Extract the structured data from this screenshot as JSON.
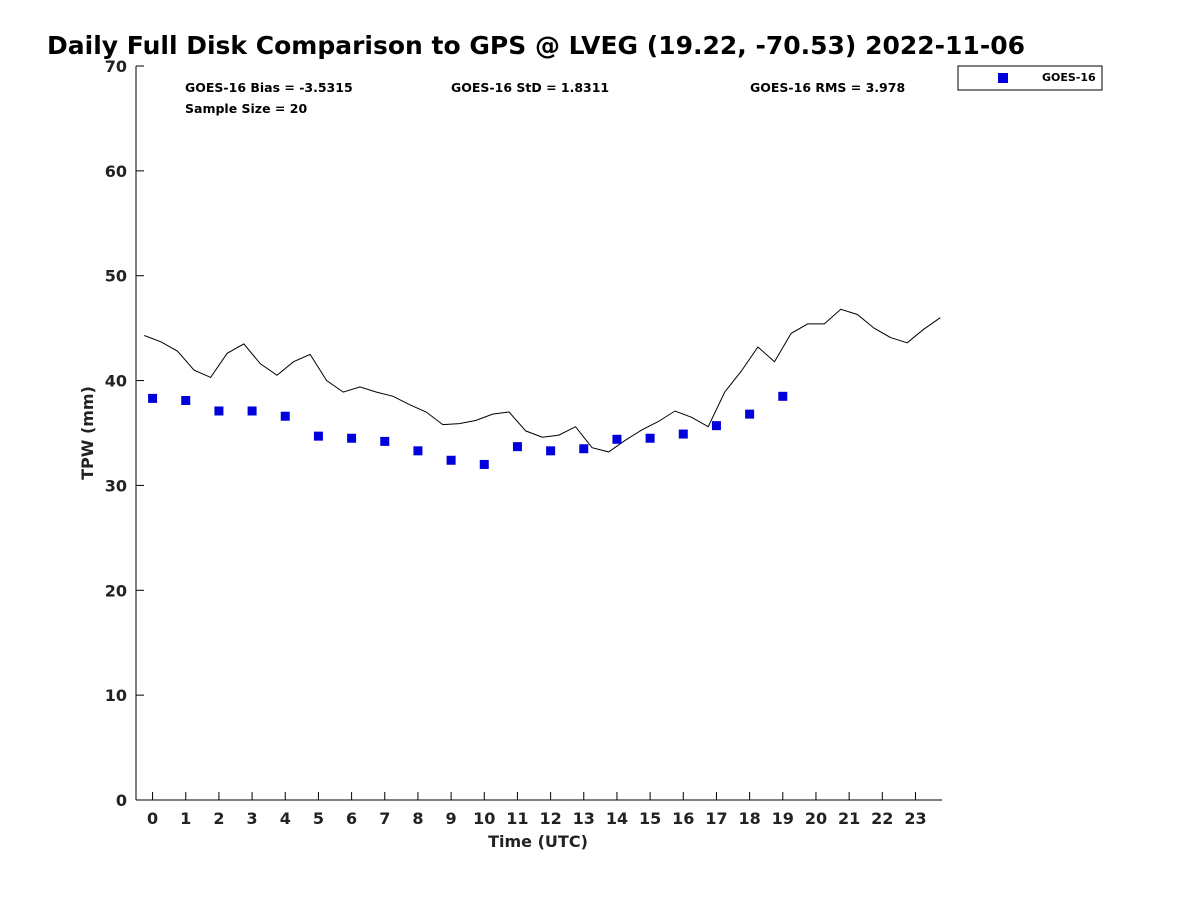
{
  "chart_data": {
    "type": "scatter",
    "title": "Daily Full Disk Comparison to GPS @ LVEG (19.22, -70.53) 2022-11-06",
    "xlabel": "Time (UTC)",
    "ylabel": "TPW (mm)",
    "xlim": [
      -0.5,
      23.8
    ],
    "ylim": [
      0,
      70
    ],
    "xticks": [
      0,
      1,
      2,
      3,
      4,
      5,
      6,
      7,
      8,
      9,
      10,
      11,
      12,
      13,
      14,
      15,
      16,
      17,
      18,
      19,
      20,
      21,
      22,
      23
    ],
    "xtick_labels": [
      "0",
      "1",
      "2",
      "3",
      "4",
      "5",
      "6",
      "7",
      "8",
      "9",
      "10",
      "11",
      "12",
      "13",
      "14",
      "15",
      "16",
      "17",
      "18",
      "19",
      "20",
      "21",
      "22",
      "23"
    ],
    "yticks": [
      0,
      10,
      20,
      30,
      40,
      50,
      60,
      70
    ],
    "ytick_labels": [
      "0",
      "10",
      "20",
      "30",
      "40",
      "50",
      "60",
      "70"
    ],
    "grid": false,
    "legend_position": "outside-top-right",
    "stats": [
      "GOES-16 Bias = -3.5315",
      "GOES-16 StD = 1.8311",
      "GOES-16 RMS = 3.978",
      "Sample Size = 20"
    ],
    "series": [
      {
        "name": "GOES-16",
        "kind": "scatter",
        "marker": "square",
        "color": "#0000dd",
        "x": [
          0,
          1,
          2,
          3,
          4,
          5,
          6,
          7,
          8,
          9,
          10,
          11,
          12,
          13,
          14,
          15,
          16,
          17,
          18,
          19
        ],
        "y": [
          38.3,
          38.1,
          37.1,
          37.1,
          36.6,
          34.7,
          34.5,
          34.2,
          33.3,
          32.4,
          32.0,
          33.7,
          33.3,
          33.5,
          34.4,
          34.5,
          34.9,
          35.7,
          36.8,
          38.5
        ]
      },
      {
        "kind": "line",
        "color": "#000000",
        "x": [
          -0.25,
          0.25,
          0.75,
          1.25,
          1.75,
          2.25,
          2.75,
          3.25,
          3.75,
          4.25,
          4.75,
          5.25,
          5.75,
          6.25,
          6.75,
          7.25,
          7.75,
          8.25,
          8.75,
          9.25,
          9.75,
          10.25,
          10.75,
          11.25,
          11.75,
          12.25,
          12.75,
          13.25,
          13.75,
          14.25,
          14.75,
          15.25,
          15.75,
          16.25,
          16.75,
          17.25,
          17.75,
          18.25,
          18.75,
          19.25,
          19.75,
          20.25,
          20.75,
          21.25,
          21.75,
          22.25,
          22.75,
          23.25,
          23.75
        ],
        "y": [
          44.3,
          43.7,
          42.8,
          41.0,
          40.3,
          42.6,
          43.5,
          41.6,
          40.5,
          41.8,
          42.5,
          40.0,
          38.9,
          39.4,
          38.9,
          38.5,
          37.7,
          37.0,
          35.8,
          35.9,
          36.2,
          36.8,
          37.0,
          35.2,
          34.6,
          34.8,
          35.6,
          33.6,
          33.2,
          34.3,
          35.3,
          36.1,
          37.1,
          36.5,
          35.6,
          38.9,
          40.9,
          43.2,
          41.8,
          44.5,
          45.4,
          45.4,
          46.8,
          46.3,
          45.0,
          44.1,
          43.6,
          44.9,
          46.0
        ]
      }
    ]
  }
}
